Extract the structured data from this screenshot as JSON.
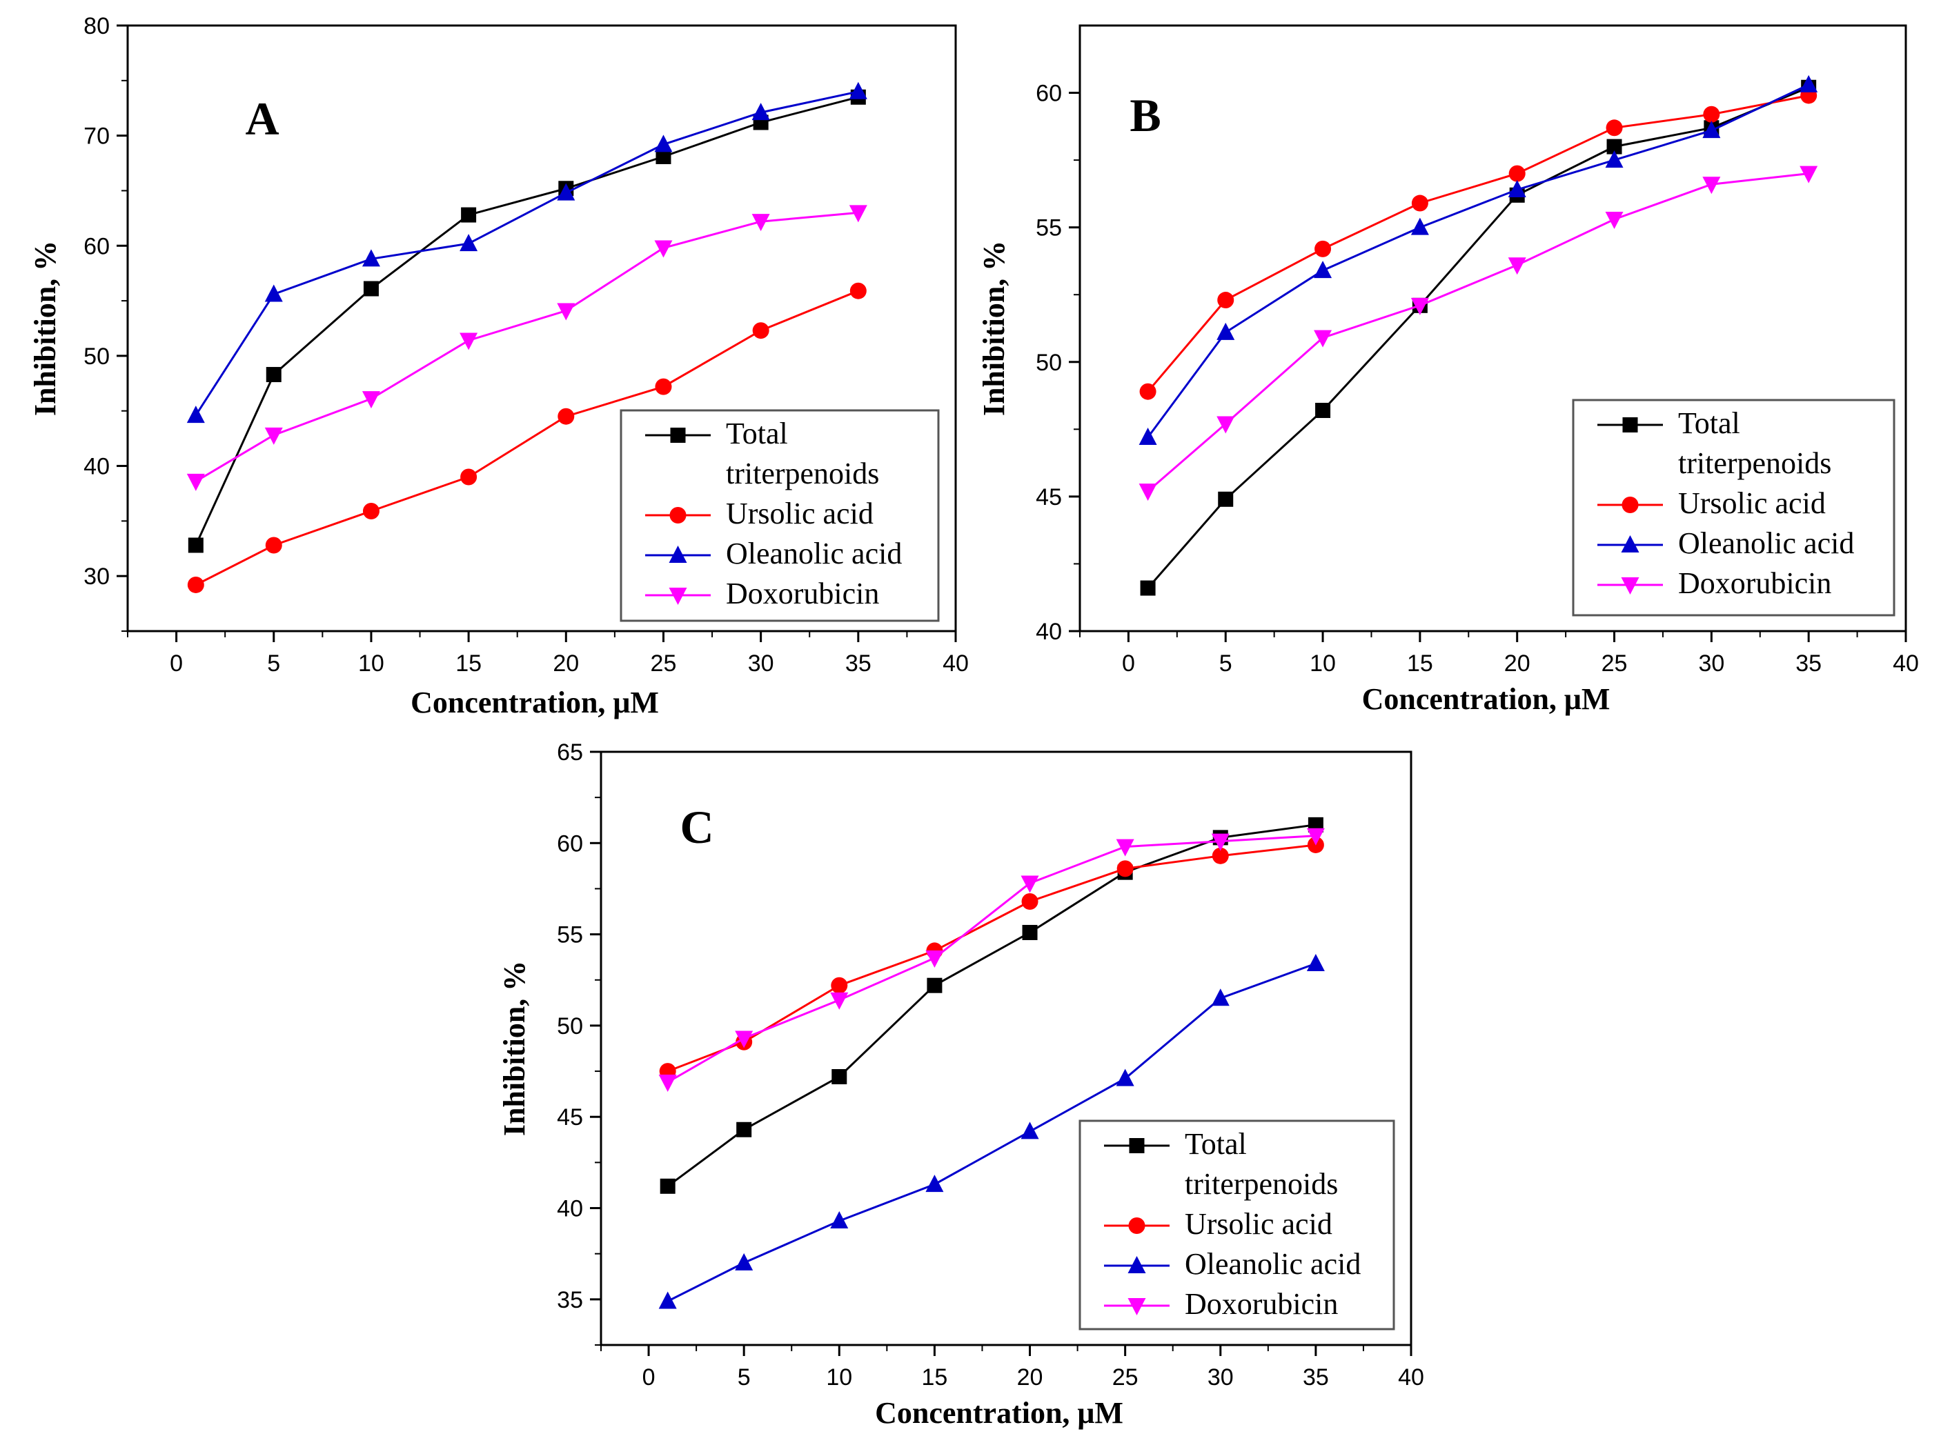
{
  "chart_data": [
    {
      "type": "line",
      "panel_label": "A",
      "xlabel": "Concentration, μM",
      "ylabel": "Inhibition, %",
      "xlim": [
        -2.5,
        40
      ],
      "ylim": [
        25,
        80
      ],
      "xticks": [
        0,
        5,
        10,
        15,
        20,
        25,
        30,
        35,
        40
      ],
      "yticks": [
        30,
        40,
        50,
        60,
        70,
        80
      ],
      "x": [
        1,
        5,
        10,
        15,
        20,
        25,
        30,
        35
      ],
      "legend_position": "bottom-right",
      "series": [
        {
          "name": "Total triterpenoids",
          "legend_lines": [
            "Total",
            "triterpenoids"
          ],
          "values": [
            32.8,
            48.3,
            56.1,
            62.8,
            65.2,
            68.1,
            71.2,
            73.5
          ]
        },
        {
          "name": "Ursolic acid",
          "legend_lines": [
            "Ursolic acid"
          ],
          "values": [
            29.2,
            32.8,
            35.9,
            39.0,
            44.5,
            47.2,
            52.3,
            55.9
          ]
        },
        {
          "name": "Oleanolic acid",
          "legend_lines": [
            "Oleanolic acid"
          ],
          "values": [
            44.6,
            55.6,
            58.8,
            60.2,
            64.8,
            69.2,
            72.1,
            74.0
          ]
        },
        {
          "name": "Doxorubicin",
          "legend_lines": [
            "Doxorubicin"
          ],
          "values": [
            38.6,
            42.8,
            46.1,
            51.4,
            54.1,
            59.8,
            62.2,
            63.0
          ]
        }
      ]
    },
    {
      "type": "line",
      "panel_label": "B",
      "xlabel": "Concentration, μM",
      "ylabel": "Inhibition, %",
      "xlim": [
        -2.5,
        40
      ],
      "ylim": [
        40,
        62.5
      ],
      "xticks": [
        0,
        5,
        10,
        15,
        20,
        25,
        30,
        35,
        40
      ],
      "yticks": [
        40,
        45,
        50,
        55,
        60
      ],
      "x": [
        1,
        5,
        10,
        15,
        20,
        25,
        30,
        35
      ],
      "legend_position": "bottom-right",
      "series": [
        {
          "name": "Total triterpenoids",
          "legend_lines": [
            "Total",
            "triterpenoids"
          ],
          "values": [
            41.6,
            44.9,
            48.2,
            52.1,
            56.2,
            58.0,
            58.7,
            60.2
          ]
        },
        {
          "name": "Ursolic acid",
          "legend_lines": [
            "Ursolic acid"
          ],
          "values": [
            48.9,
            52.3,
            54.2,
            55.9,
            57.0,
            58.7,
            59.2,
            59.9
          ]
        },
        {
          "name": "Oleanolic acid",
          "legend_lines": [
            "Oleanolic acid"
          ],
          "values": [
            47.2,
            51.1,
            53.4,
            55.0,
            56.4,
            57.5,
            58.6,
            60.3
          ]
        },
        {
          "name": "Doxorubicin",
          "legend_lines": [
            "Doxorubicin"
          ],
          "values": [
            45.2,
            47.7,
            50.9,
            52.1,
            53.6,
            55.3,
            56.6,
            57.0
          ]
        }
      ]
    },
    {
      "type": "line",
      "panel_label": "C",
      "xlabel": "Concentration, μM",
      "ylabel": "Inhibition, %",
      "xlim": [
        -2.5,
        40
      ],
      "ylim": [
        32.5,
        65
      ],
      "xticks": [
        0,
        5,
        10,
        15,
        20,
        25,
        30,
        35,
        40
      ],
      "yticks": [
        35,
        40,
        45,
        50,
        55,
        60,
        65
      ],
      "x": [
        1,
        5,
        10,
        15,
        20,
        25,
        30,
        35
      ],
      "legend_position": "bottom-right",
      "series": [
        {
          "name": "Total triterpenoids",
          "legend_lines": [
            "Total",
            "triterpenoids"
          ],
          "values": [
            41.2,
            44.3,
            47.2,
            52.2,
            55.1,
            58.4,
            60.3,
            61.0
          ]
        },
        {
          "name": "Ursolic acid",
          "legend_lines": [
            "Ursolic acid"
          ],
          "values": [
            47.5,
            49.1,
            52.2,
            54.1,
            56.8,
            58.6,
            59.3,
            59.9
          ]
        },
        {
          "name": "Oleanolic acid",
          "legend_lines": [
            "Oleanolic acid"
          ],
          "values": [
            34.9,
            37.0,
            39.3,
            41.3,
            44.2,
            47.1,
            51.5,
            53.4
          ]
        },
        {
          "name": "Doxorubicin",
          "legend_lines": [
            "Doxorubicin"
          ],
          "values": [
            46.9,
            49.3,
            51.4,
            53.7,
            57.8,
            59.8,
            60.1,
            60.4
          ]
        }
      ]
    }
  ],
  "series_styles": [
    {
      "name": "Total triterpenoids",
      "color": "#000000",
      "marker": "square"
    },
    {
      "name": "Ursolic acid",
      "color": "#ff0000",
      "marker": "circle"
    },
    {
      "name": "Oleanolic acid",
      "color": "#0000cc",
      "marker": "triangle-up"
    },
    {
      "name": "Doxorubicin",
      "color": "#ff00ff",
      "marker": "triangle-down"
    }
  ]
}
